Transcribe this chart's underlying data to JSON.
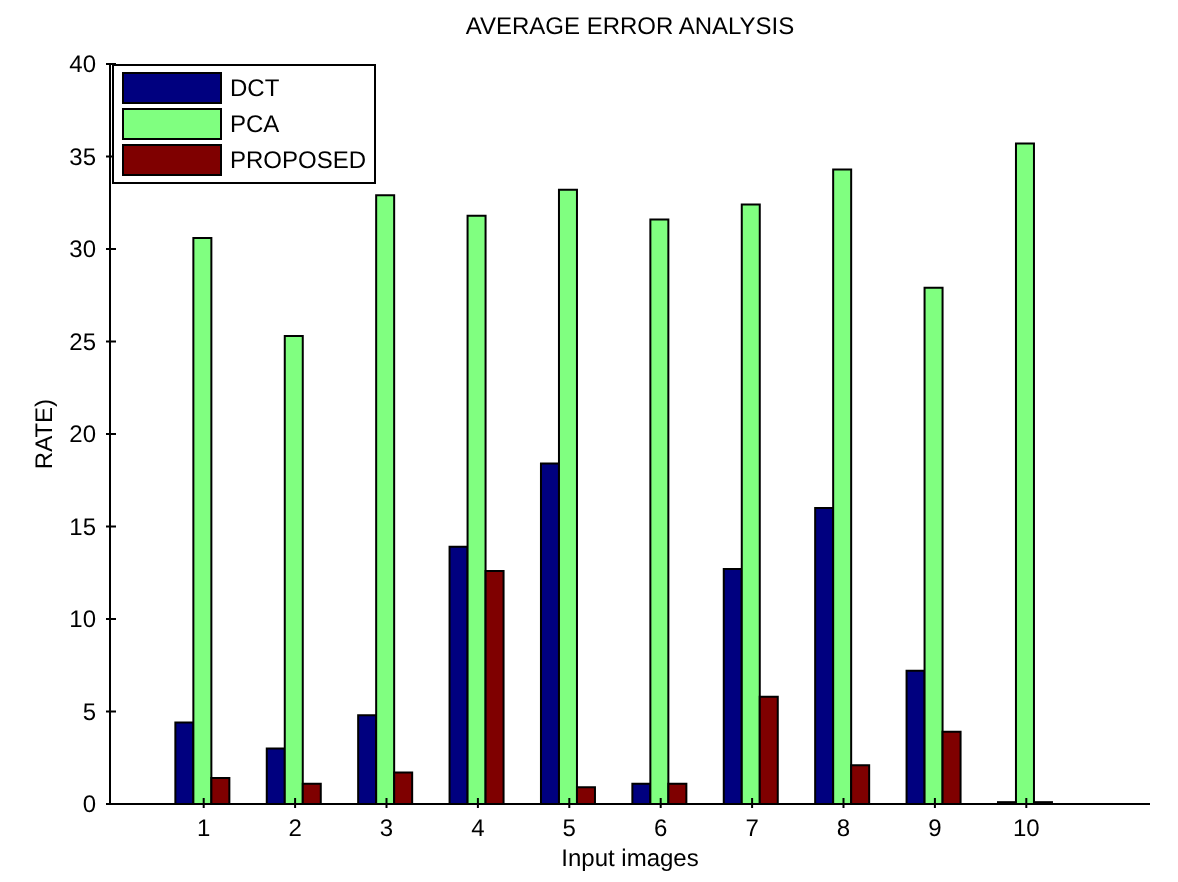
{
  "chart_data": {
    "type": "bar",
    "title": "AVERAGE ERROR ANALYSIS",
    "xlabel": "Input images",
    "ylabel": "RATE)",
    "categories": [
      "1",
      "2",
      "3",
      "4",
      "5",
      "6",
      "7",
      "8",
      "9",
      "10"
    ],
    "series": [
      {
        "name": "DCT",
        "color": "#00007f",
        "values": [
          4.4,
          3.0,
          4.8,
          13.9,
          18.4,
          1.1,
          12.7,
          16.0,
          7.2,
          0.1
        ]
      },
      {
        "name": "PCA",
        "color": "#80ff80",
        "values": [
          30.6,
          25.3,
          32.9,
          31.8,
          33.2,
          31.6,
          32.4,
          34.3,
          27.9,
          35.7
        ]
      },
      {
        "name": "PROPOSED",
        "color": "#7f0000",
        "values": [
          1.4,
          1.1,
          1.7,
          12.6,
          0.9,
          1.1,
          5.8,
          2.1,
          3.9,
          0.1
        ]
      }
    ],
    "ylim": [
      0,
      40
    ],
    "yticks": [
      0,
      5,
      10,
      15,
      20,
      25,
      30,
      35,
      40
    ],
    "grid": false,
    "legend": "top left"
  }
}
